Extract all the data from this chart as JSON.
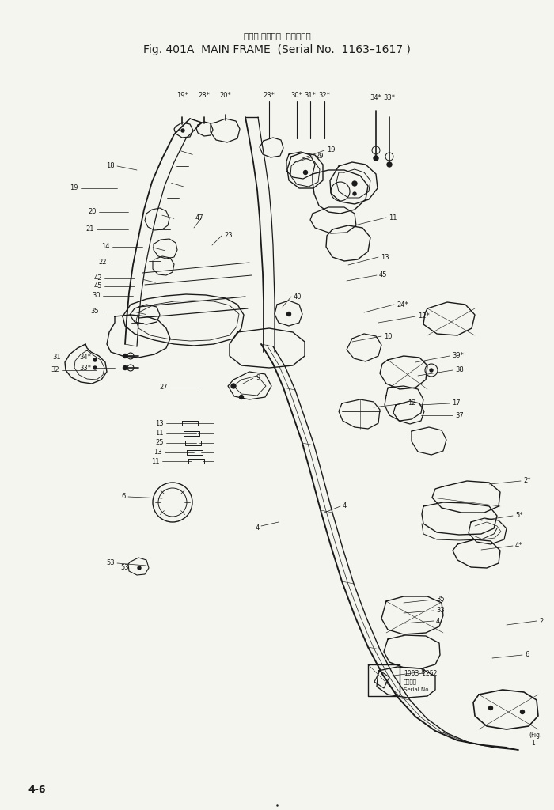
{
  "title_line1": "メイン フレーム  （適用号機",
  "title_line2": "Fig. 401A  MAIN FRAME  （Serial No.  1163–1617）",
  "page_number": "4-6",
  "background_color": "#f5f5f0",
  "ink_color": "#1a1a1a",
  "fig_width": 7.0,
  "fig_height": 10.24,
  "dpi": 100
}
